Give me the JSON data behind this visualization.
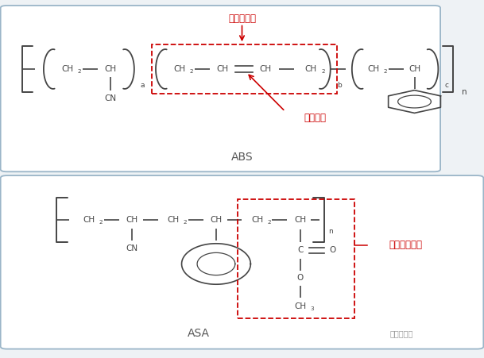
{
  "fig_width": 6.09,
  "fig_height": 4.51,
  "bg_color": "#eef2f5",
  "panel_border_color": "#9ab5c8",
  "text_color": "#454545",
  "red_color": "#cc0000",
  "title1": "ABS",
  "title2": "ASA",
  "label1": "丁二烯橡胶",
  "label2": "碳碳双键",
  "label3": "丙烯酸酯橡胶",
  "watermark": "结构攻城师"
}
